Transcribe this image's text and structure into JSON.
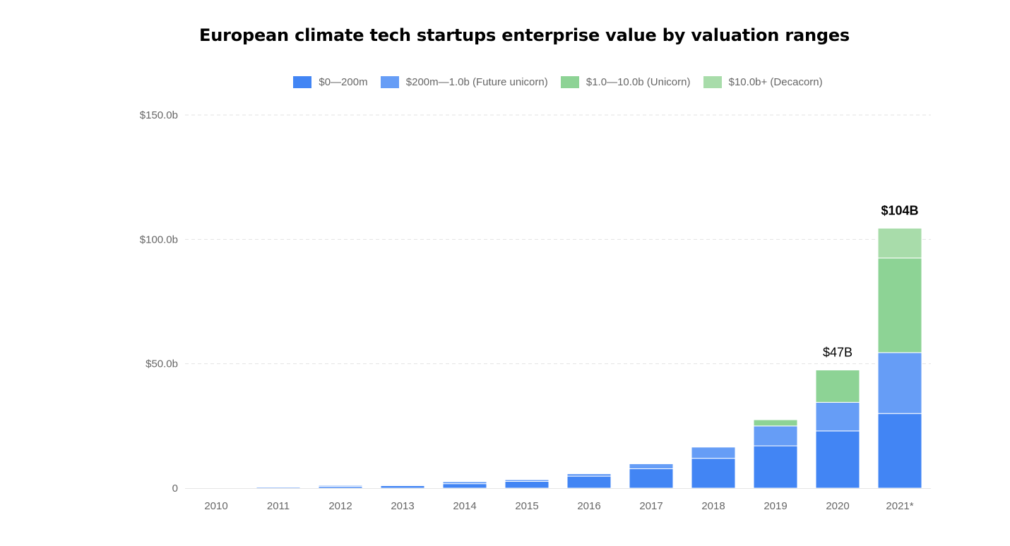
{
  "chart_data": {
    "type": "bar",
    "stacked": true,
    "title": "European climate tech startups enterprise value by valuation ranges",
    "categories": [
      "2010",
      "2011",
      "2012",
      "2013",
      "2014",
      "2015",
      "2016",
      "2017",
      "2018",
      "2019",
      "2020",
      "2021*"
    ],
    "series": [
      {
        "name": "$0—200m",
        "color": "#4285f4",
        "values": [
          0.2,
          0.5,
          0.7,
          1.0,
          1.8,
          2.7,
          4.8,
          7.8,
          12.0,
          17.0,
          23.0,
          30.0
        ]
      },
      {
        "name": "$200m—1.0b (Future unicorn)",
        "color": "#669df6",
        "values": [
          0.0,
          0.2,
          0.4,
          0.3,
          0.8,
          0.7,
          1.0,
          2.0,
          4.5,
          8.0,
          11.5,
          24.5
        ]
      },
      {
        "name": "$1.0—10.0b (Unicorn)",
        "color": "#8dd395",
        "values": [
          0,
          0,
          0,
          0,
          0,
          0,
          0,
          0,
          0,
          2.5,
          13.0,
          38.0
        ]
      },
      {
        "name": "$10.0b+ (Decacorn)",
        "color": "#a8dcaa",
        "values": [
          0,
          0,
          0,
          0,
          0,
          0,
          0,
          0,
          0,
          0,
          0,
          12.0
        ]
      }
    ],
    "ylim": [
      0,
      150
    ],
    "yticks": [
      {
        "value": 0,
        "label": "0"
      },
      {
        "value": 50,
        "label": "$50.0b"
      },
      {
        "value": 100,
        "label": "$100.0b"
      },
      {
        "value": 150,
        "label": "$150.0b"
      }
    ],
    "grid": true,
    "legend_position": "top",
    "annotations": [
      {
        "category": "2020",
        "text": "$47B",
        "bold": false
      },
      {
        "category": "2021*",
        "text": "$104B",
        "bold": true
      }
    ]
  }
}
